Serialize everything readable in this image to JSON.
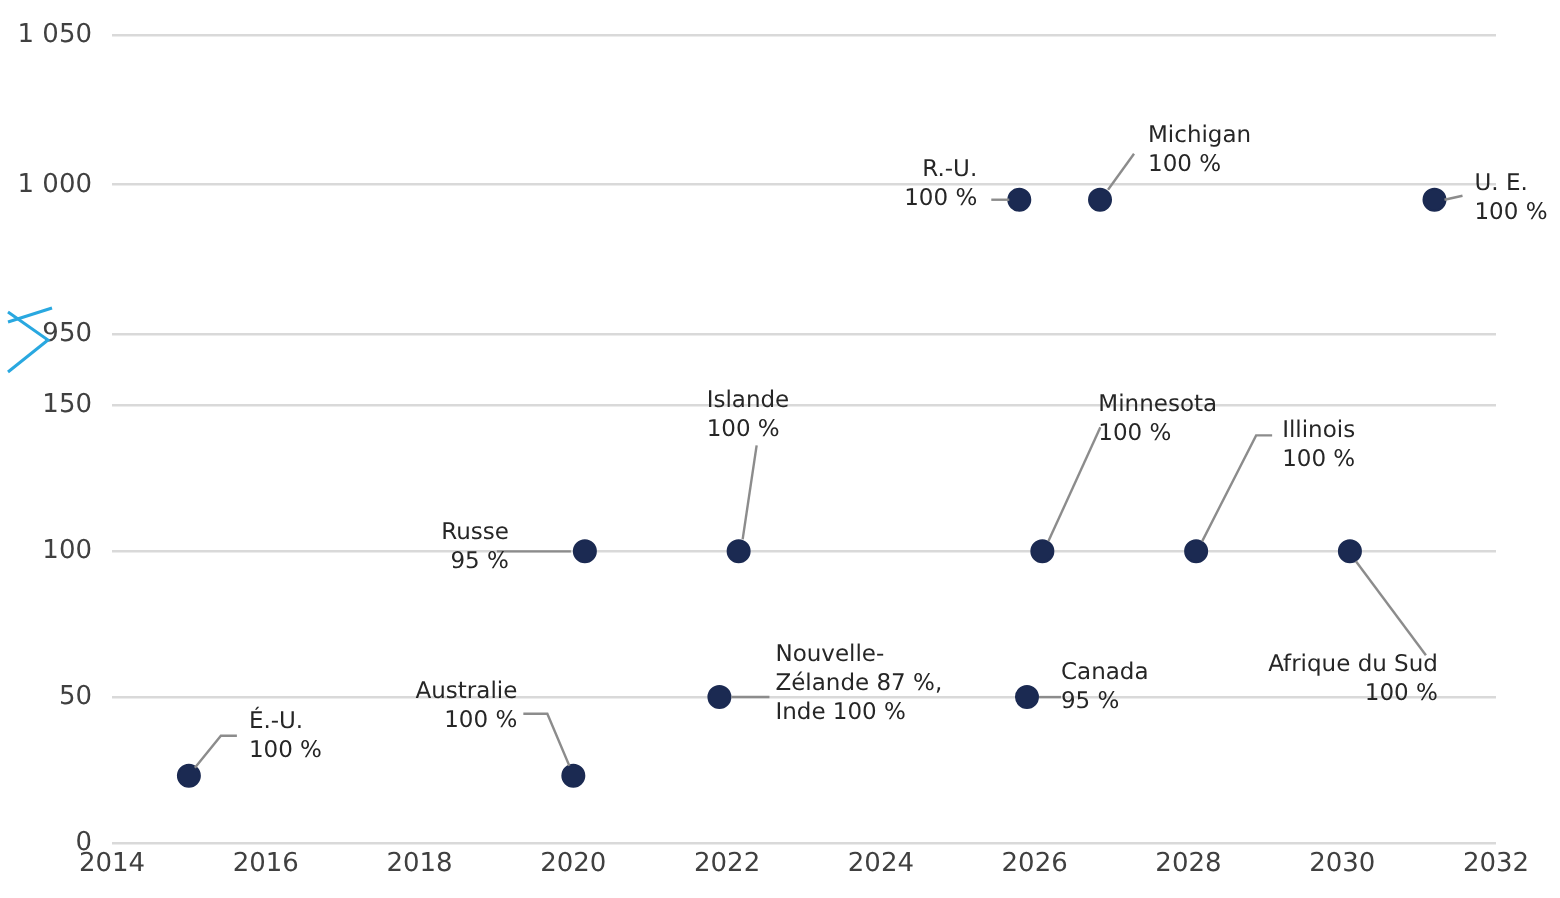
{
  "chart_data": [
    {
      "type": "scatter",
      "x": [
        2025.8,
        2026.85,
        2031.2
      ],
      "values": [
        995,
        995,
        995
      ],
      "color": "#1b2a52",
      "marker": "circle",
      "grid": "y",
      "tick_labels": "y",
      "xlim": [
        2014,
        2032
      ],
      "ylim": [
        950,
        1050
      ],
      "yticks": [
        950,
        {
          "value": 1000,
          "label": "1 000"
        },
        {
          "value": 1050,
          "label": "1 050"
        }
      ],
      "annotations": [
        {
          "text": "R.-U.\n100 %",
          "x": 2025.8,
          "y": 995
        },
        {
          "text": "Michigan\n100 %",
          "x": 2026.85,
          "y": 995
        },
        {
          "text": "U. E.\n100 %",
          "x": 2031.2,
          "y": 995
        }
      ]
    },
    {
      "type": "scatter",
      "x": [
        2015,
        2020,
        2020.15,
        2022.15,
        2021.9,
        2025.9,
        2026.1,
        2028.1,
        2030.1
      ],
      "values": [
        23,
        23,
        100,
        100,
        50,
        50,
        100,
        100,
        100
      ],
      "color": "#1b2a52",
      "marker": "circle",
      "grid": "y",
      "xlim": [
        2014,
        2032
      ],
      "ylim": [
        0,
        150
      ],
      "xticks": [
        2014,
        2016,
        2018,
        2020,
        2022,
        2024,
        2026,
        2028,
        2030,
        2032
      ],
      "yticks": [
        0,
        50,
        100,
        150
      ],
      "annotations": [
        {
          "text": "É.-U.\n100 %",
          "x": 2015,
          "y": 23
        },
        {
          "text": "Australie\n100 %",
          "x": 2020,
          "y": 23
        },
        {
          "text": "Russe\n95 %",
          "x": 2020.15,
          "y": 100
        },
        {
          "text": "Islande\n100 %",
          "x": 2022.15,
          "y": 100
        },
        {
          "text": "Nouvelle-\nZélande 87 %,\nInde 100 %",
          "x": 2021.9,
          "y": 50
        },
        {
          "text": "Canada\n95 %",
          "x": 2025.9,
          "y": 50
        },
        {
          "text": "Minnesota\n100 %",
          "x": 2026.1,
          "y": 100
        },
        {
          "text": "Illinois\n100 %",
          "x": 2028.1,
          "y": 100
        },
        {
          "text": "Afrique du Sud\n100 %",
          "x": 2030.1,
          "y": 100
        }
      ]
    }
  ]
}
